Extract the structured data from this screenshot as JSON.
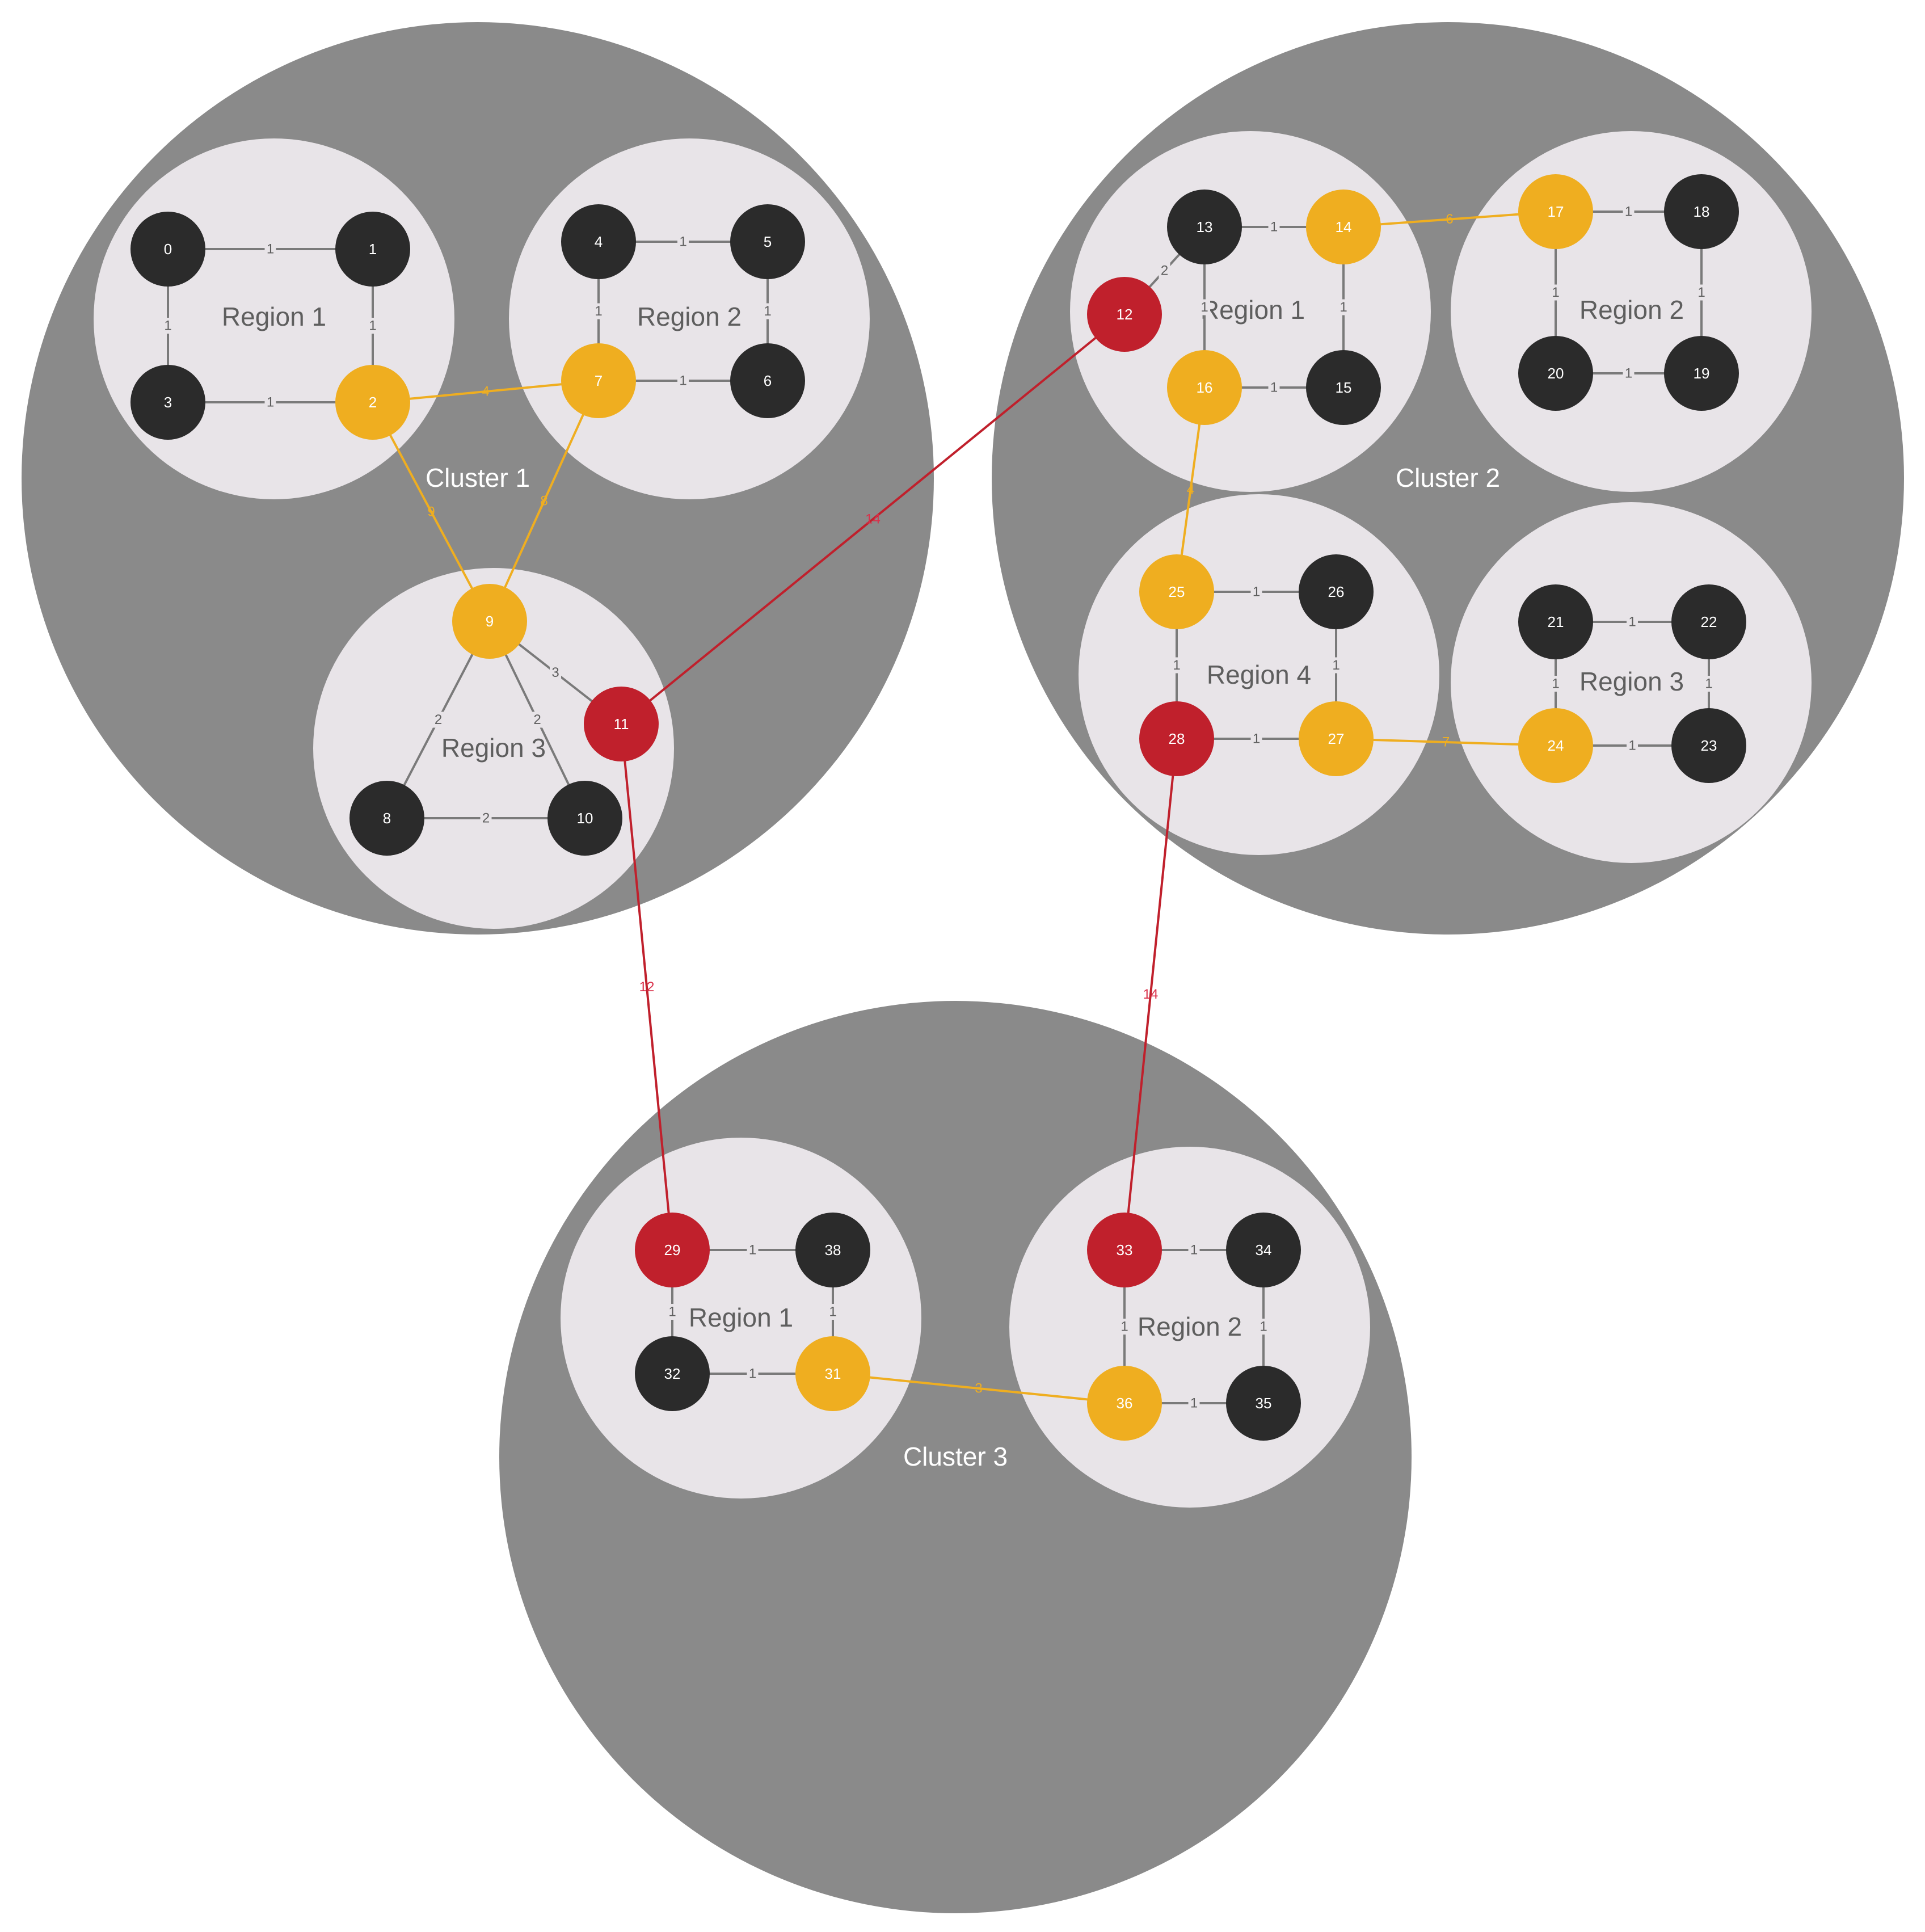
{
  "colors": {
    "cluster": "#8a8a8a",
    "region": "#e8e4e8",
    "node_default": "#2b2b2b",
    "node_gateway": "#efae20",
    "node_core": "#c0202c",
    "edge_default": "#7a7a7a",
    "edge_gateway": "#efae20",
    "edge_core": "#c0202c",
    "label_core": "#d9304a"
  },
  "clusters": [
    {
      "id": "c1",
      "label": "Cluster 1"
    },
    {
      "id": "c2",
      "label": "Cluster 2"
    },
    {
      "id": "c3",
      "label": "Cluster 3"
    }
  ],
  "regions": [
    {
      "id": "c1r1",
      "cluster": "c1",
      "label": "Region 1"
    },
    {
      "id": "c1r2",
      "cluster": "c1",
      "label": "Region 2"
    },
    {
      "id": "c1r3",
      "cluster": "c1",
      "label": "Region 3"
    },
    {
      "id": "c2r1",
      "cluster": "c2",
      "label": "Region 1"
    },
    {
      "id": "c2r2",
      "cluster": "c2",
      "label": "Region 2"
    },
    {
      "id": "c2r3",
      "cluster": "c2",
      "label": "Region 3"
    },
    {
      "id": "c2r4",
      "cluster": "c2",
      "label": "Region 4"
    },
    {
      "id": "c3r1",
      "cluster": "c3",
      "label": "Region 1"
    },
    {
      "id": "c3r2",
      "cluster": "c3",
      "label": "Region 2"
    }
  ],
  "nodes": [
    {
      "id": 0,
      "label": "0",
      "type": "default"
    },
    {
      "id": 1,
      "label": "1",
      "type": "default"
    },
    {
      "id": 2,
      "label": "2",
      "type": "gateway"
    },
    {
      "id": 3,
      "label": "3",
      "type": "default"
    },
    {
      "id": 4,
      "label": "4",
      "type": "default"
    },
    {
      "id": 5,
      "label": "5",
      "type": "default"
    },
    {
      "id": 6,
      "label": "6",
      "type": "default"
    },
    {
      "id": 7,
      "label": "7",
      "type": "gateway"
    },
    {
      "id": 8,
      "label": "8",
      "type": "default"
    },
    {
      "id": 9,
      "label": "9",
      "type": "gateway"
    },
    {
      "id": 10,
      "label": "10",
      "type": "default"
    },
    {
      "id": 11,
      "label": "11",
      "type": "core"
    },
    {
      "id": 12,
      "label": "12",
      "type": "core"
    },
    {
      "id": 13,
      "label": "13",
      "type": "default"
    },
    {
      "id": 14,
      "label": "14",
      "type": "gateway"
    },
    {
      "id": 15,
      "label": "15",
      "type": "default"
    },
    {
      "id": 16,
      "label": "16",
      "type": "gateway"
    },
    {
      "id": 17,
      "label": "17",
      "type": "gateway"
    },
    {
      "id": 18,
      "label": "18",
      "type": "default"
    },
    {
      "id": 19,
      "label": "19",
      "type": "default"
    },
    {
      "id": 20,
      "label": "20",
      "type": "default"
    },
    {
      "id": 21,
      "label": "21",
      "type": "default"
    },
    {
      "id": 22,
      "label": "22",
      "type": "default"
    },
    {
      "id": 23,
      "label": "23",
      "type": "default"
    },
    {
      "id": 24,
      "label": "24",
      "type": "gateway"
    },
    {
      "id": 25,
      "label": "25",
      "type": "gateway"
    },
    {
      "id": 26,
      "label": "26",
      "type": "default"
    },
    {
      "id": 27,
      "label": "27",
      "type": "gateway"
    },
    {
      "id": 28,
      "label": "28",
      "type": "core"
    },
    {
      "id": 29,
      "label": "29",
      "type": "core"
    },
    {
      "id": 31,
      "label": "31",
      "type": "gateway"
    },
    {
      "id": 32,
      "label": "32",
      "type": "default"
    },
    {
      "id": 33,
      "label": "33",
      "type": "core"
    },
    {
      "id": 34,
      "label": "34",
      "type": "default"
    },
    {
      "id": 35,
      "label": "35",
      "type": "default"
    },
    {
      "id": 36,
      "label": "36",
      "type": "gateway"
    },
    {
      "id": 38,
      "label": "38",
      "type": "default"
    }
  ],
  "edges": [
    {
      "from": 0,
      "to": 1,
      "weight": "1",
      "type": "default"
    },
    {
      "from": 0,
      "to": 3,
      "weight": "1",
      "type": "default"
    },
    {
      "from": 1,
      "to": 2,
      "weight": "1",
      "type": "default"
    },
    {
      "from": 3,
      "to": 2,
      "weight": "1",
      "type": "default"
    },
    {
      "from": 4,
      "to": 5,
      "weight": "1",
      "type": "default"
    },
    {
      "from": 4,
      "to": 7,
      "weight": "1",
      "type": "default"
    },
    {
      "from": 5,
      "to": 6,
      "weight": "1",
      "type": "default"
    },
    {
      "from": 7,
      "to": 6,
      "weight": "1",
      "type": "default"
    },
    {
      "from": 2,
      "to": 7,
      "weight": "4",
      "type": "gateway"
    },
    {
      "from": 2,
      "to": 9,
      "weight": "9",
      "type": "gateway"
    },
    {
      "from": 7,
      "to": 9,
      "weight": "8",
      "type": "gateway"
    },
    {
      "from": 9,
      "to": 11,
      "weight": "3",
      "type": "default"
    },
    {
      "from": 9,
      "to": 8,
      "weight": "2",
      "type": "default"
    },
    {
      "from": 9,
      "to": 10,
      "weight": "2",
      "type": "default"
    },
    {
      "from": 8,
      "to": 10,
      "weight": "2",
      "type": "default"
    },
    {
      "from": 11,
      "to": 12,
      "weight": "14",
      "type": "core"
    },
    {
      "from": 11,
      "to": 29,
      "weight": "12",
      "type": "core"
    },
    {
      "from": 12,
      "to": 13,
      "weight": "2",
      "type": "default"
    },
    {
      "from": 13,
      "to": 14,
      "weight": "1",
      "type": "default"
    },
    {
      "from": 13,
      "to": 16,
      "weight": "1",
      "type": "default"
    },
    {
      "from": 14,
      "to": 15,
      "weight": "1",
      "type": "default"
    },
    {
      "from": 16,
      "to": 15,
      "weight": "1",
      "type": "default"
    },
    {
      "from": 14,
      "to": 17,
      "weight": "6",
      "type": "gateway"
    },
    {
      "from": 17,
      "to": 18,
      "weight": "1",
      "type": "default"
    },
    {
      "from": 17,
      "to": 20,
      "weight": "1",
      "type": "default"
    },
    {
      "from": 18,
      "to": 19,
      "weight": "1",
      "type": "default"
    },
    {
      "from": 20,
      "to": 19,
      "weight": "1",
      "type": "default"
    },
    {
      "from": 16,
      "to": 25,
      "weight": "4",
      "type": "gateway"
    },
    {
      "from": 25,
      "to": 26,
      "weight": "1",
      "type": "default"
    },
    {
      "from": 25,
      "to": 28,
      "weight": "1",
      "type": "default"
    },
    {
      "from": 26,
      "to": 27,
      "weight": "1",
      "type": "default"
    },
    {
      "from": 28,
      "to": 27,
      "weight": "1",
      "type": "default"
    },
    {
      "from": 27,
      "to": 24,
      "weight": "7",
      "type": "gateway"
    },
    {
      "from": 21,
      "to": 22,
      "weight": "1",
      "type": "default"
    },
    {
      "from": 21,
      "to": 24,
      "weight": "1",
      "type": "default"
    },
    {
      "from": 22,
      "to": 23,
      "weight": "1",
      "type": "default"
    },
    {
      "from": 24,
      "to": 23,
      "weight": "1",
      "type": "default"
    },
    {
      "from": 28,
      "to": 33,
      "weight": "14",
      "type": "core"
    },
    {
      "from": 29,
      "to": 38,
      "weight": "1",
      "type": "default"
    },
    {
      "from": 29,
      "to": 32,
      "weight": "1",
      "type": "default"
    },
    {
      "from": 38,
      "to": 31,
      "weight": "1",
      "type": "default"
    },
    {
      "from": 32,
      "to": 31,
      "weight": "1",
      "type": "default"
    },
    {
      "from": 31,
      "to": 36,
      "weight": "3",
      "type": "gateway"
    },
    {
      "from": 33,
      "to": 34,
      "weight": "1",
      "type": "default"
    },
    {
      "from": 33,
      "to": 36,
      "weight": "1",
      "type": "default"
    },
    {
      "from": 34,
      "to": 35,
      "weight": "1",
      "type": "default"
    },
    {
      "from": 36,
      "to": 35,
      "weight": "1",
      "type": "default"
    }
  ]
}
